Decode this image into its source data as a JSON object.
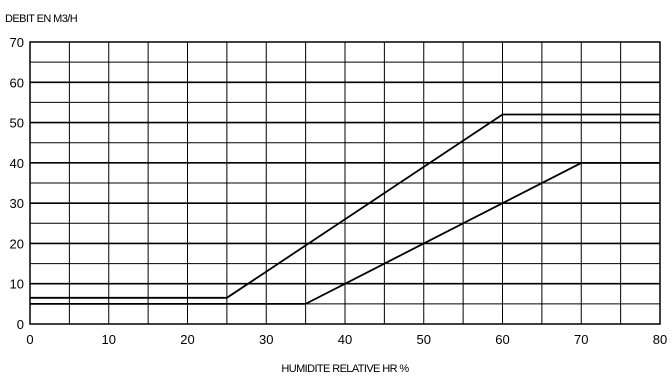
{
  "chart_data": {
    "type": "line",
    "title": "",
    "ylabel": "DEBIT EN M3/H",
    "xlabel": "HUMIDITE RELATIVE HR %",
    "xlim": [
      0,
      80
    ],
    "ylim": [
      0,
      70
    ],
    "x_ticks": [
      0,
      10,
      20,
      30,
      40,
      50,
      60,
      70,
      80
    ],
    "y_ticks": [
      0,
      10,
      20,
      30,
      40,
      50,
      60,
      70
    ],
    "grid": true,
    "legend": "none",
    "series": [
      {
        "points": [
          [
            0,
            6.5
          ],
          [
            25,
            6.5
          ],
          [
            60,
            52
          ],
          [
            80,
            52
          ]
        ]
      },
      {
        "points": [
          [
            0,
            5
          ],
          [
            35,
            5
          ],
          [
            70,
            40
          ],
          [
            80,
            40
          ]
        ]
      }
    ]
  }
}
